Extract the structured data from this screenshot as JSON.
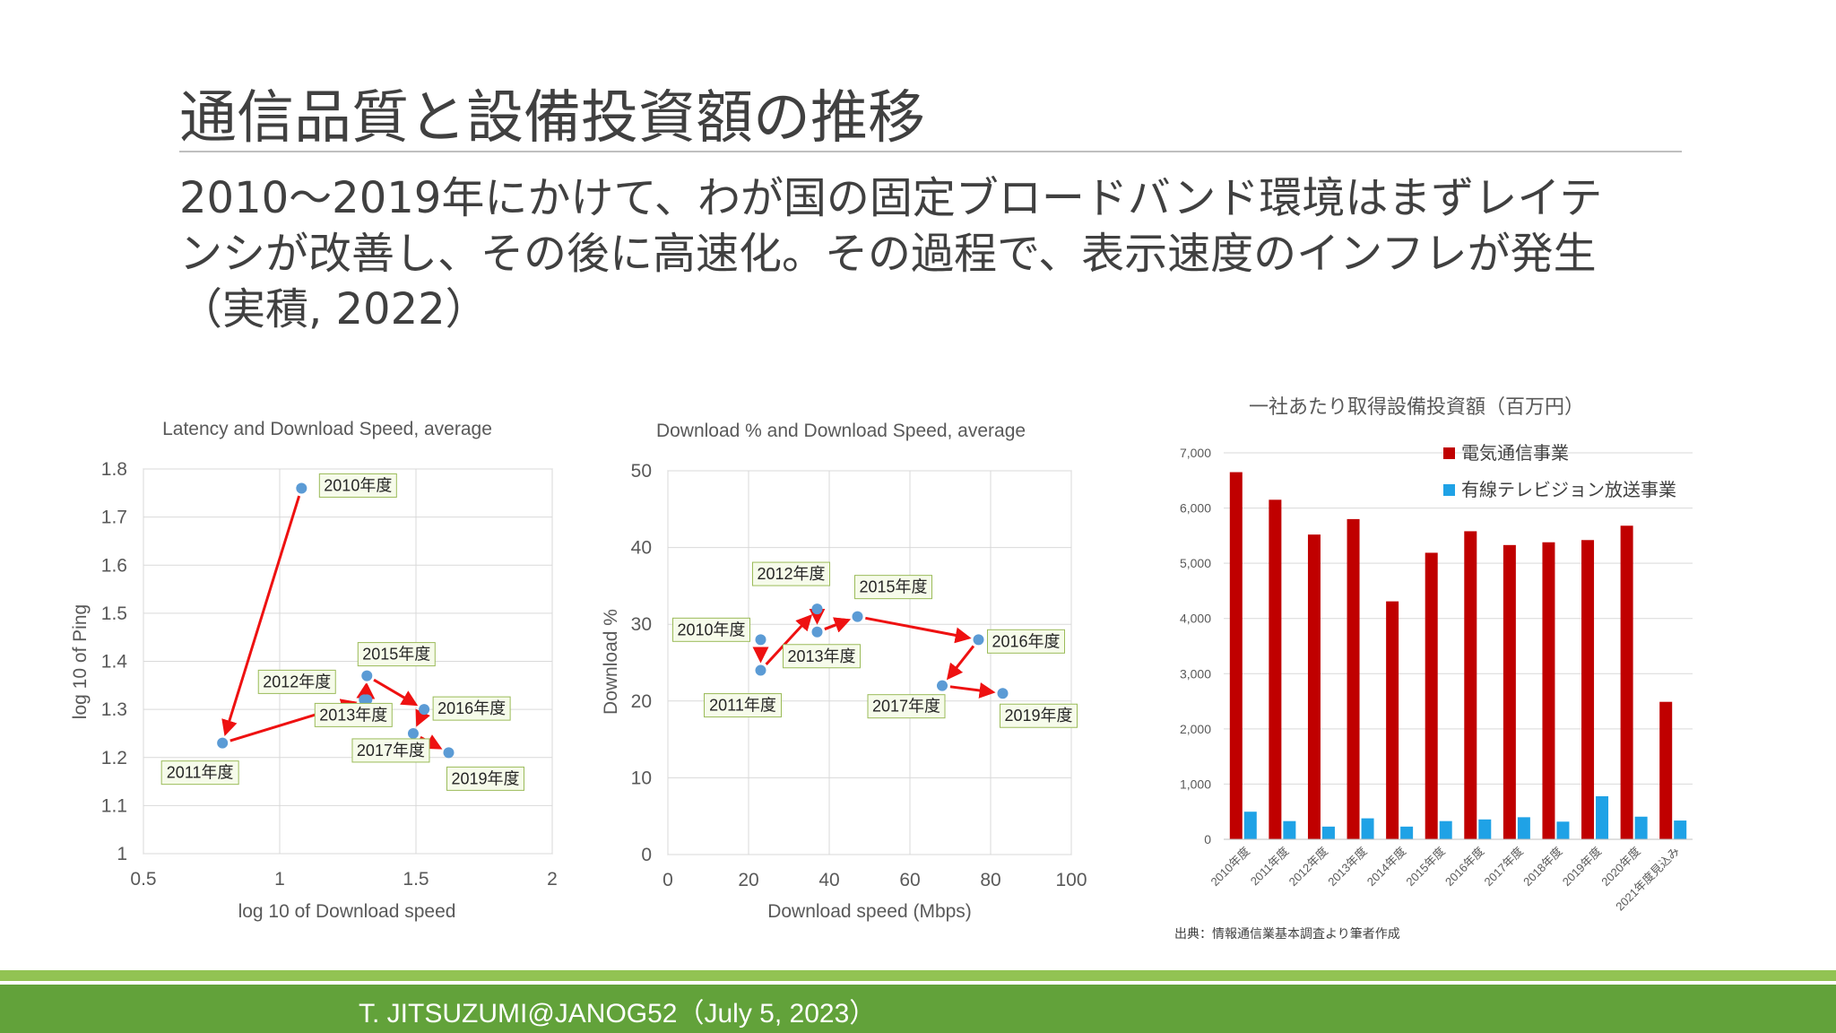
{
  "slide": {
    "title": "通信品質と設備投資額の推移",
    "subtitle_lines": [
      "2010〜2019年にかけて、わが国の固定ブロードバンド環境はまずレイテ",
      "ンシが改善し、その後に高速化。その過程で、表示速度のインフレが発生",
      "（実積, 2022）"
    ],
    "footer": "T. JITSUZUMI@JANOG52（July 5, 2023）"
  },
  "colors": {
    "point": "#5b9bd5",
    "arrow": "#ee1111",
    "bar_telecom": "#c00000",
    "bar_cable": "#1fa2e6",
    "label_border": "#9bbb59",
    "label_bg": "#f6fbea"
  },
  "chart_data": [
    {
      "type": "scatter",
      "title": "Latency and Download Speed, average",
      "xlabel": "log 10 of Download speed",
      "ylabel": "log 10 of Ping",
      "xlim": [
        0.5,
        2
      ],
      "ylim": [
        1,
        1.8
      ],
      "xticks": [
        "0.5",
        "1",
        "1.5",
        "2"
      ],
      "yticks": [
        "1",
        "1.1",
        "1.2",
        "1.3",
        "1.4",
        "1.5",
        "1.6",
        "1.7",
        "1.8"
      ],
      "grid": true,
      "points": [
        {
          "label": "2010年度",
          "x": 1.08,
          "y": 1.76
        },
        {
          "label": "2011年度",
          "x": 0.79,
          "y": 1.23
        },
        {
          "label": "2012年度",
          "x": 1.31,
          "y": 1.32
        },
        {
          "label": "2013年度",
          "x": 1.32,
          "y": 1.32
        },
        {
          "label": "2015年度",
          "x": 1.32,
          "y": 1.37
        },
        {
          "label": "2016年度",
          "x": 1.53,
          "y": 1.3
        },
        {
          "label": "2017年度",
          "x": 1.49,
          "y": 1.25
        },
        {
          "label": "2019年度",
          "x": 1.62,
          "y": 1.21
        }
      ]
    },
    {
      "type": "scatter",
      "title": "Download % and Download Speed, average",
      "xlabel": "Download  speed (Mbps)",
      "ylabel": "Download %",
      "xlim": [
        0,
        100
      ],
      "ylim": [
        0,
        50
      ],
      "xticks": [
        "0",
        "20",
        "40",
        "60",
        "80",
        "100"
      ],
      "yticks": [
        "0",
        "10",
        "20",
        "30",
        "40",
        "50"
      ],
      "grid": true,
      "points": [
        {
          "label": "2010年度",
          "x": 23,
          "y": 28
        },
        {
          "label": "2011年度",
          "x": 23,
          "y": 24
        },
        {
          "label": "2012年度",
          "x": 37,
          "y": 32
        },
        {
          "label": "2013年度",
          "x": 37,
          "y": 29
        },
        {
          "label": "2015年度",
          "x": 47,
          "y": 31
        },
        {
          "label": "2016年度",
          "x": 77,
          "y": 28
        },
        {
          "label": "2017年度",
          "x": 68,
          "y": 22
        },
        {
          "label": "2019年度",
          "x": 83,
          "y": 21
        }
      ]
    },
    {
      "type": "bar",
      "title": "一社あたり取得設備投資額（百万円）",
      "ylim": [
        0,
        7000
      ],
      "yticks": [
        "0",
        "1,000",
        "2,000",
        "3,000",
        "4,000",
        "5,000",
        "6,000",
        "7,000"
      ],
      "grid": true,
      "legend_position": "top-right",
      "categories": [
        "2010年度",
        "2011年度",
        "2012年度",
        "2013年度",
        "2014年度",
        "2015年度",
        "2016年度",
        "2017年度",
        "2018年度",
        "2019年度",
        "2020年度",
        "2021年度見込み"
      ],
      "series": [
        {
          "name": "電気通信事業",
          "values": [
            6650,
            6150,
            5520,
            5800,
            4310,
            5190,
            5580,
            5330,
            5380,
            5420,
            5680,
            2490
          ]
        },
        {
          "name": "有線テレビジョン放送事業",
          "values": [
            500,
            330,
            230,
            380,
            230,
            330,
            360,
            400,
            320,
            780,
            410,
            340
          ]
        }
      ],
      "source": "出典：情報通信業基本調査より筆者作成"
    }
  ]
}
